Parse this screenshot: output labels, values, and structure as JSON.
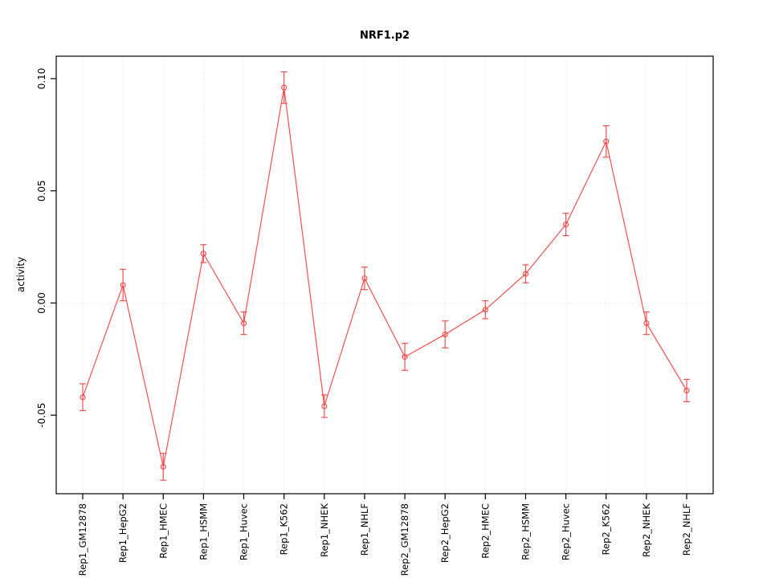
{
  "page": {
    "background": "#ffffff"
  },
  "chart_data": {
    "type": "line",
    "title": "NRF1.p2",
    "xlabel": "",
    "ylabel": "activity",
    "categories": [
      "Rep1_GM12878",
      "Rep1_HepG2",
      "Rep1_HMEC",
      "Rep1_HSMM",
      "Rep1_Huvec",
      "Rep1_K562",
      "Rep1_NHEK",
      "Rep1_NHLF",
      "Rep2_GM12878",
      "Rep2_HepG2",
      "Rep2_HMEC",
      "Rep2_HSMM",
      "Rep2_Huvec",
      "Rep2_K562",
      "Rep2_NHEK",
      "Rep2_NHLF"
    ],
    "values": [
      -0.042,
      0.008,
      -0.073,
      0.022,
      -0.009,
      0.096,
      -0.046,
      0.011,
      -0.024,
      -0.014,
      -0.003,
      0.013,
      0.035,
      0.072,
      -0.009,
      -0.039
    ],
    "errors": [
      0.006,
      0.007,
      0.006,
      0.004,
      0.005,
      0.007,
      0.005,
      0.005,
      0.006,
      0.006,
      0.004,
      0.004,
      0.005,
      0.007,
      0.005,
      0.005
    ],
    "ylim": [
      -0.085,
      0.11
    ],
    "yticks": [
      -0.05,
      0.0,
      0.05,
      0.1
    ],
    "grid": "vertical dotted gridlines at each category, dotted horizontal line at zero",
    "legend": "none",
    "marker": "open-circle",
    "line_color": "#f05050",
    "grid_color": "#d9d9d9",
    "axis_color": "#000000"
  }
}
